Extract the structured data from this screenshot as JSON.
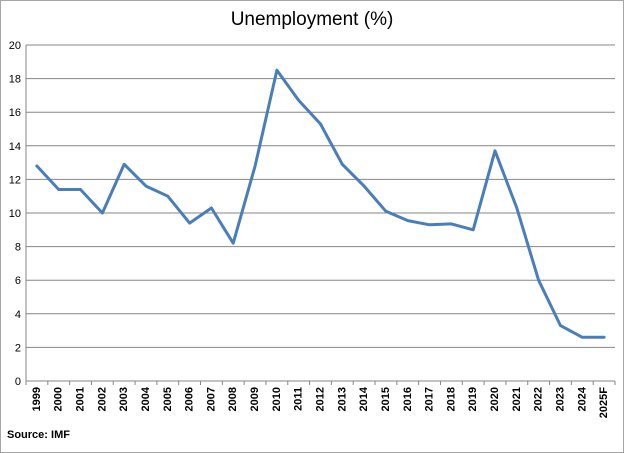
{
  "chart_data": {
    "type": "line",
    "title": "Unemployment (%)",
    "source": "Source: IMF",
    "xlabel": "",
    "ylabel": "",
    "ylim": [
      0,
      20
    ],
    "yticks": [
      0,
      2,
      4,
      6,
      8,
      10,
      12,
      14,
      16,
      18,
      20
    ],
    "grid": true,
    "categories": [
      "1999",
      "2000",
      "2001",
      "2002",
      "2003",
      "2004",
      "2005",
      "2006",
      "2007",
      "2008",
      "2009",
      "2010",
      "2011",
      "2012",
      "2013",
      "2014",
      "2015",
      "2016",
      "2017",
      "2018",
      "2019",
      "2020",
      "2021",
      "2022",
      "2023",
      "2024",
      "2025F"
    ],
    "series": [
      {
        "values": [
          12.8,
          11.4,
          11.4,
          10.0,
          12.9,
          11.6,
          11.0,
          9.4,
          10.3,
          8.2,
          12.8,
          18.5,
          16.7,
          15.3,
          12.9,
          11.6,
          10.1,
          9.55,
          9.3,
          9.35,
          9.0,
          13.7,
          10.3,
          6.0,
          3.3,
          2.6,
          2.6
        ],
        "color": "#4a7ebb"
      }
    ]
  }
}
